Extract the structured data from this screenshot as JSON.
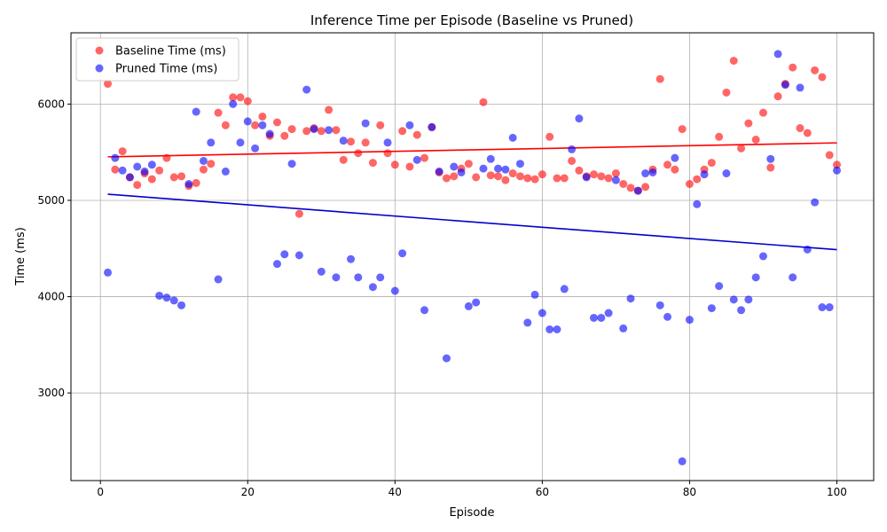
{
  "chart_data": {
    "type": "scatter",
    "title": "Inference Time per Episode (Baseline vs Pruned)",
    "xlabel": "Episode",
    "ylabel": "Time (ms)",
    "xlim": [
      -4,
      105
    ],
    "ylim": [
      2090,
      6740
    ],
    "xticks": [
      0,
      20,
      40,
      60,
      80,
      100
    ],
    "yticks": [
      3000,
      4000,
      5000,
      6000
    ],
    "grid": true,
    "legend_position": "top-left",
    "x": [
      1,
      2,
      3,
      4,
      5,
      6,
      7,
      8,
      9,
      10,
      11,
      12,
      13,
      14,
      15,
      16,
      17,
      18,
      19,
      20,
      21,
      22,
      23,
      24,
      25,
      26,
      27,
      28,
      29,
      30,
      31,
      32,
      33,
      34,
      35,
      36,
      37,
      38,
      39,
      40,
      41,
      42,
      43,
      44,
      45,
      46,
      47,
      48,
      49,
      50,
      51,
      52,
      53,
      54,
      55,
      56,
      57,
      58,
      59,
      60,
      61,
      62,
      63,
      64,
      65,
      66,
      67,
      68,
      69,
      70,
      71,
      72,
      73,
      74,
      75,
      76,
      77,
      78,
      79,
      80,
      81,
      82,
      83,
      84,
      85,
      86,
      87,
      88,
      89,
      90,
      91,
      92,
      93,
      94,
      95,
      96,
      97,
      98,
      99,
      100
    ],
    "series": [
      {
        "name": "Baseline Time (ms)",
        "color": "#ff0000",
        "values": [
          6210,
          5320,
          5510,
          5240,
          5160,
          5280,
          5220,
          5310,
          5440,
          5240,
          5250,
          5150,
          5180,
          5320,
          5380,
          5910,
          5780,
          6070,
          6070,
          6030,
          5780,
          5870,
          5670,
          5810,
          5670,
          5740,
          4860,
          5720,
          5750,
          5720,
          5940,
          5730,
          5420,
          5610,
          5490,
          5600,
          5390,
          5780,
          5490,
          5370,
          5720,
          5350,
          5680,
          5440,
          5760,
          5290,
          5230,
          5250,
          5330,
          5380,
          5240,
          6020,
          5260,
          5250,
          5210,
          5280,
          5250,
          5230,
          5220,
          5270,
          5660,
          5230,
          5230,
          5410,
          5310,
          5250,
          5270,
          5250,
          5230,
          5280,
          5170,
          5130,
          5100,
          5140,
          5320,
          6260,
          5370,
          5320,
          5740,
          5170,
          5220,
          5320,
          5390,
          5660,
          6120,
          6450,
          5540,
          5800,
          5630,
          5910,
          5340,
          6080,
          6210,
          6380,
          5750,
          5700,
          6350,
          6280,
          5470,
          5370
        ],
        "trend": [
          5452,
          5597
        ]
      },
      {
        "name": "Pruned Time (ms)",
        "color": "#0000ff",
        "values": [
          4250,
          5440,
          5310,
          5240,
          5350,
          5300,
          5370,
          4010,
          3990,
          3960,
          3910,
          5170,
          5920,
          5410,
          5600,
          4180,
          5300,
          6000,
          5600,
          5820,
          5540,
          5780,
          5690,
          4340,
          4440,
          5380,
          4430,
          6150,
          5740,
          4260,
          5730,
          4200,
          5620,
          4390,
          4200,
          5800,
          4100,
          4200,
          5600,
          4060,
          4450,
          5780,
          5420,
          3860,
          5760,
          5300,
          3360,
          5350,
          5290,
          3900,
          3940,
          5330,
          5430,
          5330,
          5320,
          5650,
          5380,
          3730,
          4020,
          3830,
          3660,
          3660,
          4080,
          5530,
          5850,
          5240,
          3780,
          3780,
          3830,
          5210,
          3670,
          3980,
          5100,
          5280,
          5290,
          3910,
          3790,
          5440,
          2290,
          3760,
          4960,
          5270,
          3880,
          4110,
          5280,
          3970,
          3860,
          3970,
          4200,
          4420,
          5430,
          6520,
          6200,
          4200,
          6170,
          4490,
          4980,
          3890,
          3890,
          5310
        ],
        "trend": [
          5064,
          4488
        ]
      }
    ]
  }
}
